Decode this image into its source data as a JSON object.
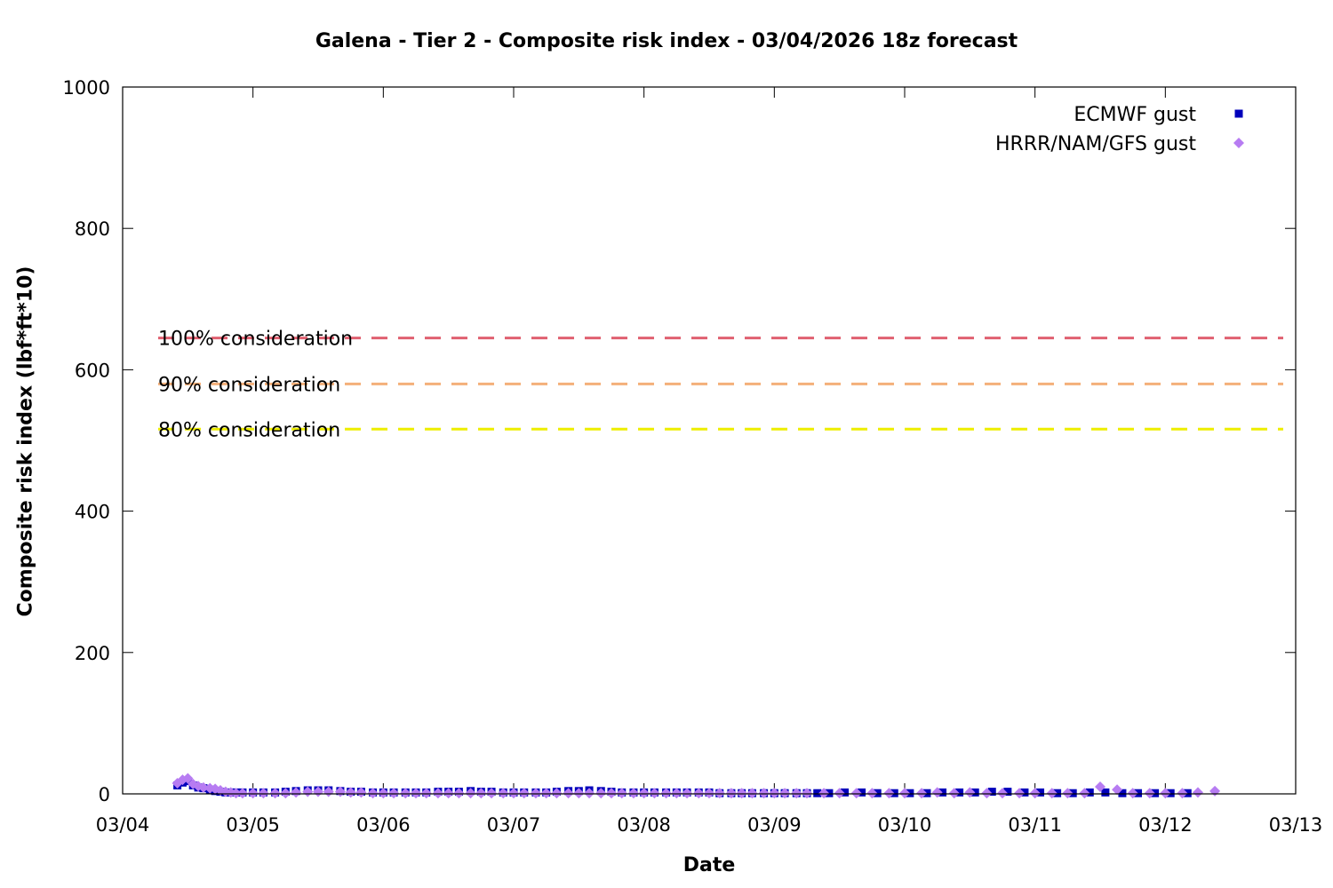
{
  "chart_data": {
    "type": "scatter",
    "title": "Galena - Tier 2 - Composite risk index - 03/04/2026 18z forecast",
    "xlabel": "Date",
    "ylabel": "Composite risk index (lbf*ft*10)",
    "x_unit": "days from 03/04 00z",
    "xlim": [
      0,
      9
    ],
    "ylim": [
      0,
      1000
    ],
    "x_ticks": [
      "03/04",
      "03/05",
      "03/06",
      "03/07",
      "03/08",
      "03/09",
      "03/10",
      "03/11",
      "03/12",
      "03/13"
    ],
    "y_ticks": [
      0,
      200,
      400,
      600,
      800,
      1000
    ],
    "legend_position": "top-right",
    "reference_lines": [
      {
        "label": "100% consideration",
        "y": 645,
        "color": "#e06070"
      },
      {
        "label": "90% consideration",
        "y": 580,
        "color": "#f4b07a"
      },
      {
        "label": "80% consideration",
        "y": 516,
        "color": "#eeee00"
      }
    ],
    "series": [
      {
        "name": "ECMWF gust",
        "marker": "square",
        "color": "#0000bb",
        "x": [
          0.42,
          0.46,
          0.5,
          0.54,
          0.58,
          0.62,
          0.67,
          0.71,
          0.75,
          0.79,
          0.83,
          0.87,
          0.92,
          1.0,
          1.08,
          1.17,
          1.25,
          1.33,
          1.42,
          1.5,
          1.58,
          1.67,
          1.75,
          1.83,
          1.92,
          2.0,
          2.08,
          2.17,
          2.25,
          2.33,
          2.42,
          2.5,
          2.58,
          2.67,
          2.75,
          2.83,
          2.92,
          3.0,
          3.08,
          3.17,
          3.25,
          3.33,
          3.42,
          3.5,
          3.58,
          3.67,
          3.75,
          3.83,
          3.92,
          4.0,
          4.08,
          4.17,
          4.25,
          4.33,
          4.42,
          4.5,
          4.58,
          4.67,
          4.75,
          4.83,
          4.92,
          5.0,
          5.08,
          5.17,
          5.25,
          5.33,
          5.42,
          5.54,
          5.67,
          5.79,
          5.92,
          6.04,
          6.17,
          6.29,
          6.42,
          6.54,
          6.67,
          6.79,
          6.92,
          7.04,
          7.17,
          7.29,
          7.42,
          7.54,
          7.67,
          7.79,
          7.92,
          8.04,
          8.17
        ],
        "y": [
          12,
          16,
          18,
          12,
          9,
          8,
          6,
          4,
          3,
          2,
          2,
          2,
          2,
          2,
          2,
          2,
          3,
          4,
          5,
          5,
          5,
          4,
          3,
          3,
          2,
          2,
          2,
          2,
          2,
          2,
          3,
          3,
          3,
          4,
          3,
          3,
          2,
          2,
          2,
          2,
          2,
          3,
          4,
          4,
          5,
          4,
          3,
          2,
          2,
          2,
          2,
          2,
          2,
          2,
          2,
          2,
          1,
          1,
          1,
          1,
          1,
          1,
          1,
          1,
          1,
          1,
          1,
          2,
          2,
          1,
          1,
          1,
          1,
          2,
          2,
          2,
          3,
          3,
          2,
          2,
          1,
          1,
          2,
          2,
          1,
          1,
          1,
          1,
          1
        ]
      },
      {
        "name": "HRRR/NAM/GFS gust",
        "marker": "diamond",
        "color": "#b77cf2",
        "x": [
          0.42,
          0.46,
          0.5,
          0.54,
          0.58,
          0.62,
          0.67,
          0.71,
          0.75,
          0.79,
          0.83,
          0.87,
          0.92,
          1.0,
          1.08,
          1.17,
          1.25,
          1.33,
          1.42,
          1.5,
          1.58,
          1.67,
          1.75,
          1.83,
          1.92,
          2.0,
          2.08,
          2.17,
          2.25,
          2.33,
          2.42,
          2.5,
          2.58,
          2.67,
          2.75,
          2.83,
          2.92,
          3.0,
          3.08,
          3.17,
          3.25,
          3.33,
          3.42,
          3.5,
          3.58,
          3.67,
          3.75,
          3.83,
          3.92,
          4.0,
          4.08,
          4.17,
          4.25,
          4.33,
          4.42,
          4.5,
          4.58,
          4.67,
          4.75,
          4.83,
          4.92,
          5.0,
          5.08,
          5.17,
          5.25,
          5.38,
          5.5,
          5.63,
          5.75,
          5.88,
          6.0,
          6.13,
          6.25,
          6.38,
          6.5,
          6.63,
          6.75,
          6.88,
          7.0,
          7.13,
          7.25,
          7.38,
          7.5,
          7.63,
          7.75,
          7.88,
          8.0,
          8.13,
          8.25,
          8.38
        ],
        "y": [
          15,
          20,
          22,
          14,
          11,
          9,
          8,
          7,
          5,
          3,
          2,
          1,
          1,
          1,
          1,
          1,
          1,
          2,
          3,
          3,
          3,
          3,
          2,
          2,
          1,
          1,
          1,
          1,
          1,
          1,
          1,
          1,
          1,
          1,
          1,
          1,
          1,
          1,
          1,
          1,
          1,
          1,
          1,
          1,
          1,
          1,
          1,
          1,
          1,
          1,
          1,
          1,
          1,
          1,
          1,
          1,
          1,
          1,
          1,
          1,
          1,
          1,
          1,
          1,
          1,
          1,
          1,
          1,
          1,
          1,
          1,
          1,
          2,
          1,
          2,
          1,
          1,
          1,
          1,
          1,
          1,
          1,
          10,
          6,
          1,
          1,
          1,
          1,
          2,
          4
        ]
      }
    ]
  }
}
